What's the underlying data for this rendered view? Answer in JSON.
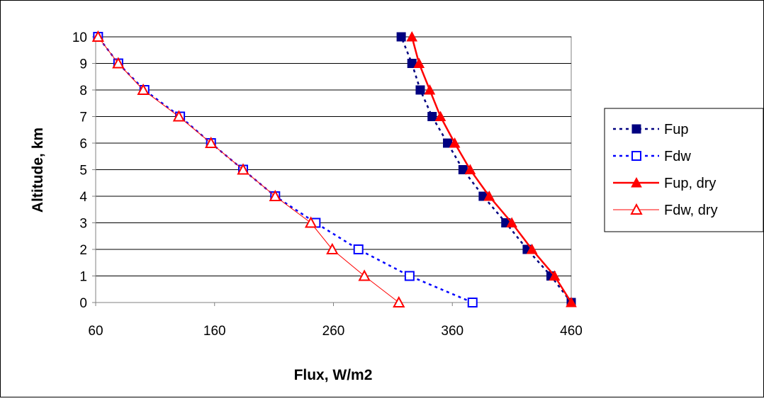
{
  "chart_data": {
    "type": "line",
    "title": "",
    "xlabel": "Flux, W/m2",
    "ylabel": "Altitude, km",
    "xlim": [
      60,
      460
    ],
    "ylim": [
      0,
      10
    ],
    "x_ticks": [
      "60",
      "160",
      "260",
      "360",
      "460"
    ],
    "y_ticks": [
      "0",
      "1",
      "2",
      "3",
      "4",
      "5",
      "6",
      "7",
      "8",
      "9",
      "10"
    ],
    "grid": "horizontal",
    "legend_position": "right",
    "altitude": [
      0,
      1,
      2,
      3,
      4,
      5,
      6,
      7,
      8,
      9,
      10
    ],
    "series": [
      {
        "name": "Fup",
        "x": [
          460,
          443,
          423,
          405,
          386,
          369,
          356,
          343,
          333,
          326,
          317
        ],
        "color": "#000080",
        "line": "dotted",
        "marker": "square-filled"
      },
      {
        "name": "Fdw",
        "x": [
          377,
          324,
          281,
          245,
          211,
          184,
          157,
          131,
          101,
          79,
          62
        ],
        "color": "#0000ff",
        "line": "dotted",
        "marker": "square-open"
      },
      {
        "name": "Fup, dry",
        "x": [
          460,
          446,
          427,
          410,
          391,
          375,
          362,
          350,
          341,
          332,
          326
        ],
        "color": "#ff0000",
        "line": "solid-thick",
        "marker": "triangle-filled"
      },
      {
        "name": "Fdw, dry",
        "x": [
          315,
          286,
          259,
          241,
          211,
          184,
          157,
          130,
          100,
          79,
          62
        ],
        "color": "#ff0000",
        "line": "solid-thin",
        "marker": "triangle-open"
      }
    ]
  }
}
